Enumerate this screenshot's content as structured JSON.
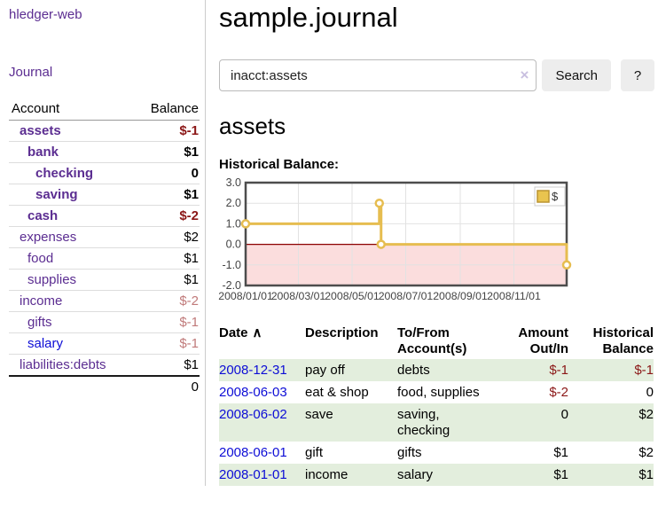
{
  "sidebar": {
    "app_title": "hledger-web",
    "journal_link": "Journal",
    "accounts_table": {
      "header_account": "Account",
      "header_balance": "Balance",
      "rows": [
        {
          "name": "assets",
          "balance": "$-1",
          "depth": 1,
          "bold": true,
          "balance_style": "neg-strong"
        },
        {
          "name": "bank",
          "balance": "$1",
          "depth": 2,
          "bold": true,
          "balance_style": "pos"
        },
        {
          "name": "checking",
          "balance": "0",
          "depth": 3,
          "bold": true,
          "balance_style": "pos"
        },
        {
          "name": "saving",
          "balance": "$1",
          "depth": 3,
          "bold": true,
          "balance_style": "pos"
        },
        {
          "name": "cash",
          "balance": "$-2",
          "depth": 2,
          "bold": true,
          "balance_style": "neg-strong"
        },
        {
          "name": "expenses",
          "balance": "$2",
          "depth": 1,
          "bold": false,
          "balance_style": "pos"
        },
        {
          "name": "food",
          "balance": "$1",
          "depth": 2,
          "bold": false,
          "balance_style": "pos"
        },
        {
          "name": "supplies",
          "balance": "$1",
          "depth": 2,
          "bold": false,
          "balance_style": "pos"
        },
        {
          "name": "income",
          "balance": "$-2",
          "depth": 1,
          "bold": false,
          "balance_style": "neg-soft"
        },
        {
          "name": "gifts",
          "balance": "$-1",
          "depth": 2,
          "bold": false,
          "balance_style": "neg-soft"
        },
        {
          "name": "salary",
          "balance": "$-1",
          "depth": 2,
          "bold": false,
          "balance_style": "neg-soft",
          "link_color": "blue"
        },
        {
          "name": "liabilities:debts",
          "balance": "$1",
          "depth": 1,
          "bold": false,
          "balance_style": "pos"
        }
      ],
      "total": "0"
    }
  },
  "header": {
    "title": "sample.journal"
  },
  "search": {
    "query": "inacct:assets",
    "clear_icon": "×",
    "button_label": "Search",
    "help_label": "?"
  },
  "account_page": {
    "heading": "assets",
    "chart_label": "Historical Balance:"
  },
  "chart_data": {
    "type": "line",
    "step": true,
    "title": "Historical Balance",
    "series": [
      {
        "name": "$",
        "points": [
          [
            "2008-01-01",
            1
          ],
          [
            "2008-06-01",
            2
          ],
          [
            "2008-06-03",
            0
          ],
          [
            "2008-12-31",
            -1
          ]
        ]
      }
    ],
    "x_range": [
      "2008-01-01",
      "2008-12-31"
    ],
    "ylim": [
      -2,
      3
    ],
    "ytick_labels": [
      "3.0",
      "2.0",
      "1.0",
      "0.0",
      "-1.0",
      "-2.0"
    ],
    "xtick_labels": [
      "2008/01/01",
      "2008/03/01",
      "2008/05/01",
      "2008/07/01",
      "2008/09/01",
      "2008/11/01"
    ],
    "grid": true,
    "legend": {
      "label": "$",
      "position": "top-right"
    },
    "colors": {
      "line": "#e6bd50",
      "marker_fill": "#ffffff",
      "legend_fill": "#e9c44f",
      "legend_border": "#bb9430",
      "negative_region": "#fbdddd",
      "zero_line": "#8b0000",
      "border": "#4d4d4d",
      "gridline": "#e2e2e2",
      "tick_text": "#444444"
    }
  },
  "transactions": {
    "headers": {
      "date": "Date",
      "sort_indicator": "∧",
      "description": "Description",
      "tofrom_line1": "To/From",
      "tofrom_line2": "Account(s)",
      "amount_line1": "Amount",
      "amount_line2": "Out/In",
      "balance_line1": "Historical",
      "balance_line2": "Balance"
    },
    "rows": [
      {
        "date": "2008-12-31",
        "description": "pay off",
        "accounts": "debts",
        "amount": "$-1",
        "amount_negative": true,
        "balance": "$-1",
        "balance_negative": true
      },
      {
        "date": "2008-06-03",
        "description": "eat & shop",
        "accounts": "food, supplies",
        "amount": "$-2",
        "amount_negative": true,
        "balance": "0",
        "balance_negative": false
      },
      {
        "date": "2008-06-02",
        "description": "save",
        "accounts": "saving, checking",
        "amount": "0",
        "amount_negative": false,
        "balance": "$2",
        "balance_negative": false
      },
      {
        "date": "2008-06-01",
        "description": "gift",
        "accounts": "gifts",
        "amount": "$1",
        "amount_negative": false,
        "balance": "$2",
        "balance_negative": false
      },
      {
        "date": "2008-01-01",
        "description": "income",
        "accounts": "salary",
        "amount": "$1",
        "amount_negative": false,
        "balance": "$1",
        "balance_negative": false
      }
    ]
  }
}
